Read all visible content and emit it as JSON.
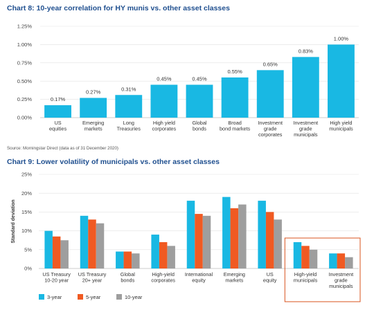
{
  "chart_data": [
    {
      "type": "bar",
      "title": "Chart 8: 10-year correlation for HY munis vs. other asset classes",
      "categories": [
        [
          "US",
          "equities"
        ],
        [
          "Emerging",
          "markets"
        ],
        [
          "Long",
          "Treasuries"
        ],
        [
          "High yield",
          "corporates"
        ],
        [
          "Global",
          "bonds"
        ],
        [
          "Broad",
          "bond markets"
        ],
        [
          "Investment",
          "grade",
          "corporates"
        ],
        [
          "Investment",
          "grade",
          "municipals"
        ],
        [
          "High yield",
          "municipals"
        ]
      ],
      "values": [
        0.17,
        0.27,
        0.31,
        0.45,
        0.45,
        0.55,
        0.65,
        0.83,
        1.0
      ],
      "data_labels": [
        "0.17%",
        "0.27%",
        "0.31%",
        "0.45%",
        "0.45%",
        "0.55%",
        "0.65%",
        "0.83%",
        "1.00%"
      ],
      "yticks": [
        0,
        0.25,
        0.5,
        0.75,
        1.0,
        1.25
      ],
      "ytick_labels": [
        "0.00%",
        "0.25%",
        "0.50%",
        "0.75%",
        "1.00%",
        "1.25%"
      ],
      "ylim": [
        0,
        1.25
      ],
      "xlabel": "",
      "ylabel": "",
      "color": "#19b8e3",
      "source": "Source: Morningstar Direct (data as of 31 December 2020)"
    },
    {
      "type": "bar",
      "title": "Chart 9: Lower volatility of municipals vs. other asset classes",
      "categories": [
        [
          "US Treasury",
          "10-20 year"
        ],
        [
          "US Treasury",
          "20+ year"
        ],
        [
          "Global",
          "bonds"
        ],
        [
          "High-yield",
          "corporates"
        ],
        [
          "International",
          "equity"
        ],
        [
          "Emerging",
          "markets"
        ],
        [
          "US",
          "equity"
        ],
        [
          "High-yield",
          "municipals"
        ],
        [
          "Investment",
          "grade",
          "municipals"
        ]
      ],
      "series": [
        {
          "name": "3-year",
          "color": "#19b8e3",
          "values": [
            10,
            14,
            4.5,
            9,
            18,
            19,
            18,
            7,
            4
          ]
        },
        {
          "name": "5-year",
          "color": "#f05a22",
          "values": [
            8.5,
            13,
            4.5,
            7,
            14.5,
            16,
            15,
            6,
            4
          ]
        },
        {
          "name": "10-year",
          "color": "#9e9e9e",
          "values": [
            7.5,
            12,
            4,
            6,
            14,
            17,
            13,
            5,
            3
          ]
        }
      ],
      "yticks": [
        0,
        5,
        10,
        15,
        20,
        25
      ],
      "ytick_labels": [
        "0%",
        "5%",
        "10%",
        "15%",
        "20%",
        "25%"
      ],
      "ylim": [
        0,
        25
      ],
      "xlabel": "",
      "ylabel": "Standard deviation",
      "highlight_color": "#d9531e",
      "legend_position": "bottom-left"
    }
  ]
}
